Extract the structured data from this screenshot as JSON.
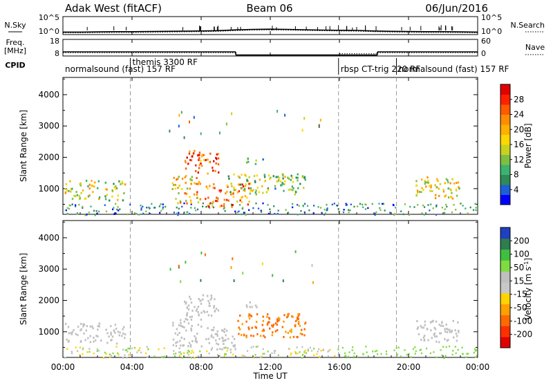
{
  "header": {
    "radar": "Adak West (fitACF)",
    "beam": "Beam 06",
    "date": "06/Jun/2016"
  },
  "chart_data": [
    {
      "type": "line",
      "name": "noise-panel",
      "left_label": "N.Sky",
      "right_label": "N.Search",
      "left_ticks": [
        "10^5",
        "10^0"
      ],
      "right_ticks": [
        "10^5",
        "10^0"
      ],
      "x_hours": [
        0,
        1,
        2,
        3,
        4,
        5,
        6,
        7,
        8,
        9,
        10,
        11,
        12,
        13,
        14,
        15,
        16,
        17,
        18,
        19,
        20,
        21,
        22,
        23,
        24
      ],
      "n_sky_log": [
        0.7,
        0.7,
        0.75,
        0.8,
        0.8,
        0.85,
        0.9,
        0.95,
        1.0,
        1.1,
        1.3,
        1.45,
        1.5,
        1.45,
        1.35,
        1.25,
        1.2,
        1.15,
        1.0,
        0.9,
        0.85,
        0.8,
        0.8,
        0.75,
        0.7
      ],
      "n_search_log": [
        0.5,
        0.5,
        0.55,
        0.6,
        0.6,
        0.65,
        0.7,
        0.75,
        0.8,
        0.9,
        1.1,
        1.25,
        1.3,
        1.25,
        1.15,
        1.05,
        1.0,
        0.95,
        0.8,
        0.7,
        0.65,
        0.6,
        0.6,
        0.55,
        0.5
      ]
    },
    {
      "type": "line",
      "name": "frequency-panel",
      "left_label": "Freq.",
      "left_unit": "[MHz]",
      "right_label": "Nave",
      "left_ticks": [
        "18",
        "8"
      ],
      "right_ticks": [
        "60",
        "0"
      ],
      "freq_steps": [
        {
          "from": 0,
          "to": 10,
          "mhz": 10.5
        },
        {
          "from": 10,
          "to": 18.2,
          "mhz": 8.6
        },
        {
          "from": 18.2,
          "to": 24,
          "mhz": 10.5
        }
      ],
      "nave_steps": [
        {
          "from": 0,
          "to": 10,
          "n": 12
        },
        {
          "from": 10,
          "to": 16,
          "n": 4
        },
        {
          "from": 16,
          "to": 18.2,
          "n": 8
        },
        {
          "from": 18.2,
          "to": 24,
          "n": 12
        }
      ]
    },
    {
      "type": "table",
      "name": "cpid-panel",
      "label": "CPID",
      "segments": [
        {
          "start": 0,
          "end": 3.9,
          "text": "normalsound (fast) 157 RF"
        },
        {
          "start": 3.9,
          "end": 15.95,
          "text": "themis 3300 RF"
        },
        {
          "start": 15.95,
          "end": 19.3,
          "text": "rbsp CT-trig 220 RF"
        },
        {
          "start": 19.3,
          "end": 24,
          "text": "normalsound (fast) 157 RF"
        }
      ]
    },
    {
      "type": "heatmap",
      "name": "power-panel",
      "ylabel": "Slant Range [km]",
      "yticks": [
        1000,
        2000,
        3000,
        4000
      ],
      "ylim": [
        180,
        4550
      ],
      "xlim": [
        0,
        24
      ],
      "colorbar": {
        "label": "Power [dB]",
        "ticks": [
          "28",
          "24",
          "20",
          "16",
          "12",
          "8",
          "4"
        ],
        "colors": [
          "#0000ff",
          "#1e5fd9",
          "#2e8b57",
          "#3cb371",
          "#7fbf3f",
          "#c8d21e",
          "#ffd700",
          "#ffb000",
          "#ff8c00",
          "#ff5a00",
          "#ff2000",
          "#e00000"
        ]
      },
      "regions": [
        {
          "t0": 0.1,
          "t1": 2.2,
          "r0": 700,
          "r1": 1320,
          "level": 0.5
        },
        {
          "t0": 2.4,
          "t1": 3.6,
          "r0": 650,
          "r1": 1280,
          "level": 0.45
        },
        {
          "t0": 6.3,
          "t1": 8.0,
          "r0": 550,
          "r1": 1450,
          "level": 0.6
        },
        {
          "t0": 7.0,
          "t1": 9.0,
          "r0": 1500,
          "r1": 2250,
          "level": 0.85
        },
        {
          "t0": 8.2,
          "t1": 10.8,
          "r0": 450,
          "r1": 1200,
          "level": 0.75
        },
        {
          "t0": 9.5,
          "t1": 14.0,
          "r0": 850,
          "r1": 1500,
          "level": 0.4
        },
        {
          "t0": 10.5,
          "t1": 11.6,
          "r0": 1800,
          "r1": 2000,
          "level": 0.3
        },
        {
          "t0": 20.4,
          "t1": 23.0,
          "r0": 700,
          "r1": 1400,
          "level": 0.5
        }
      ]
    },
    {
      "type": "heatmap",
      "name": "velocity-panel",
      "ylabel": "Slant Range [km]",
      "yticks": [
        1000,
        2000,
        3000,
        4000
      ],
      "ylim": [
        180,
        4550
      ],
      "xlim": [
        0,
        24
      ],
      "colorbar": {
        "label": "Velocity [m s^-1]",
        "ticks": [
          "200",
          "100",
          "50",
          "15",
          "-15",
          "-50",
          "-100",
          "-200"
        ],
        "colors": [
          "#2040c0",
          "#2e7d4f",
          "#3fbf3f",
          "#7fdc3f",
          "#bfbfbf",
          "#c8c8c8",
          "#ffd400",
          "#ff9f00",
          "#ff6a00",
          "#ff3000",
          "#e00000"
        ]
      },
      "regions": [
        {
          "t0": 0.1,
          "t1": 2.2,
          "r0": 700,
          "r1": 1320,
          "v": 0
        },
        {
          "t0": 2.4,
          "t1": 3.6,
          "r0": 650,
          "r1": 1280,
          "v": 0
        },
        {
          "t0": 6.3,
          "t1": 8.0,
          "r0": 550,
          "r1": 1450,
          "v": 0
        },
        {
          "t0": 7.0,
          "t1": 9.0,
          "r0": 1500,
          "r1": 2250,
          "v": 0
        },
        {
          "t0": 8.2,
          "t1": 10.0,
          "r0": 450,
          "r1": 1200,
          "v": 0
        },
        {
          "t0": 10.0,
          "t1": 14.0,
          "r0": 850,
          "r1": 1600,
          "v": -90
        },
        {
          "t0": 10.5,
          "t1": 11.6,
          "r0": 1800,
          "r1": 2000,
          "v": 0
        },
        {
          "t0": 20.4,
          "t1": 23.0,
          "r0": 700,
          "r1": 1400,
          "v": 0
        }
      ]
    }
  ],
  "x_axis": {
    "ticks": [
      "00:00",
      "04:00",
      "08:00",
      "12:00",
      "16:00",
      "20:00",
      "00:00"
    ],
    "label": "Time UT"
  }
}
